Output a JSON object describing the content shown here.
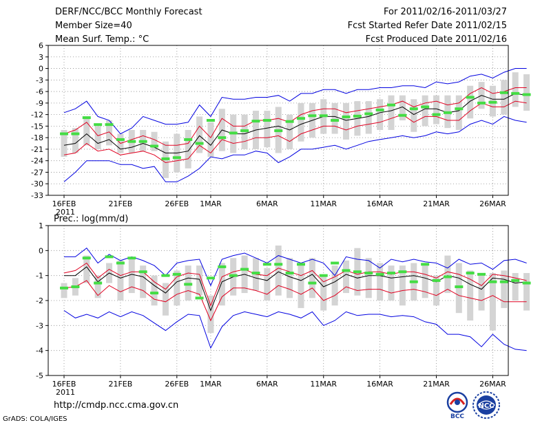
{
  "header": {
    "title": "DERF/NCC/BCC Monthly Forecast",
    "member_size": "Member Size=40",
    "variable": "Mean Surf. Temp.: °C",
    "forecast_period": "For 2011/02/16-2011/03/27",
    "refer_date": "Fcst Started Refer Date 2011/02/15",
    "produced_date": "Fcst Produced Date 2011/02/16"
  },
  "footer": {
    "url": "http://cmdp.ncc.cma.gov.cn",
    "grads": "GrADS: COLA/IGES",
    "logo_left_label": "BCC",
    "logo_right_label": "NCC"
  },
  "colors": {
    "outer_line": "#0000e0",
    "inner_line": "#e00020",
    "mean_line": "#000000",
    "box": "#d4d4d4",
    "observation": "#44dd44",
    "grid": "#888888"
  },
  "chart_data": [
    {
      "type": "line",
      "title": "Mean Surf. Temp.: °C",
      "ylabel": "",
      "ylim": [
        -33,
        6
      ],
      "yticks": [
        6,
        3,
        0,
        -3,
        -6,
        -9,
        -12,
        -15,
        -18,
        -21,
        -24,
        -27,
        -30,
        -33
      ],
      "x_tick_labels": [
        {
          "day": 1,
          "label": "16FEB"
        },
        {
          "day": 6,
          "label": "21FEB"
        },
        {
          "day": 11,
          "label": "26FEB"
        },
        {
          "day": 14,
          "label": "1MAR"
        },
        {
          "day": 19,
          "label": "6MAR"
        },
        {
          "day": 24,
          "label": "11MAR"
        },
        {
          "day": 29,
          "label": "16MAR"
        },
        {
          "day": 34,
          "label": "21MAR"
        },
        {
          "day": 39,
          "label": "26MAR"
        }
      ],
      "year_label": "2011",
      "days": 40,
      "series": [
        {
          "name": "upper",
          "values": [
            -11.5,
            -10.5,
            -8.5,
            -12.5,
            -13.5,
            -17,
            -15.5,
            -12.5,
            -13.5,
            -14.5,
            -14.5,
            -14,
            -9.5,
            -12.5,
            -7.5,
            -8,
            -8,
            -7.5,
            -7.5,
            -7,
            -8.5,
            -6.5,
            -6.5,
            -5.5,
            -5.5,
            -6.5,
            -5.5,
            -5.5,
            -5,
            -5,
            -4.5,
            -4.5,
            -5,
            -3.5,
            -4,
            -3.5,
            -2,
            -1.5,
            -2.5,
            -1,
            0,
            0
          ]
        },
        {
          "name": "upper_mid",
          "values": [
            -17,
            -16,
            -14,
            -17.5,
            -16.5,
            -19.5,
            -18.5,
            -17.5,
            -18.5,
            -20,
            -20,
            -19.5,
            -15,
            -18,
            -13,
            -15,
            -15,
            -13.5,
            -13.5,
            -13,
            -14,
            -12,
            -11,
            -10.5,
            -10.5,
            -11.5,
            -11,
            -10.5,
            -10,
            -9.5,
            -8.5,
            -10,
            -9,
            -8.5,
            -9.5,
            -9,
            -6.5,
            -5,
            -6.5,
            -6,
            -5,
            -5
          ]
        },
        {
          "name": "mean",
          "values": [
            -20,
            -19.5,
            -17,
            -19.5,
            -18.5,
            -21,
            -20.5,
            -19.5,
            -20.5,
            -22,
            -22,
            -21.5,
            -17.5,
            -20,
            -16,
            -17,
            -17,
            -16,
            -15.5,
            -15,
            -16,
            -14.5,
            -13.5,
            -12.5,
            -12.5,
            -13.5,
            -13,
            -12.5,
            -11.5,
            -11,
            -10,
            -12,
            -10.5,
            -10.5,
            -11.5,
            -11,
            -8.5,
            -7,
            -8,
            -8,
            -6.5,
            -7
          ]
        },
        {
          "name": "lower_mid",
          "values": [
            -22.5,
            -22,
            -19.5,
            -21.5,
            -21,
            -22.5,
            -22,
            -21.5,
            -22.5,
            -24.5,
            -24,
            -23.5,
            -20,
            -22,
            -18.5,
            -19.5,
            -19,
            -18,
            -18,
            -17.5,
            -19,
            -17,
            -16,
            -15,
            -15,
            -16,
            -15,
            -14.5,
            -14,
            -13,
            -12,
            -14,
            -12.5,
            -12.5,
            -13.5,
            -13.5,
            -11,
            -9,
            -10,
            -10,
            -8.5,
            -9
          ]
        },
        {
          "name": "lower",
          "values": [
            -29.5,
            -27,
            -24,
            -24,
            -24,
            -25,
            -25,
            -26,
            -25.5,
            -29.5,
            -29.5,
            -28,
            -26,
            -23,
            -23.5,
            -22.5,
            -22.5,
            -21.5,
            -22,
            -24.5,
            -23,
            -21,
            -21,
            -20.5,
            -20,
            -21,
            -20,
            -19,
            -18.5,
            -18,
            -17.5,
            -18,
            -17.5,
            -16.5,
            -17,
            -16.5,
            -14.5,
            -13.5,
            -14.5,
            -12.5,
            -13.5,
            -14
          ]
        }
      ],
      "boxes": [
        [
          -23,
          -16
        ],
        [
          -22,
          -15.5
        ],
        [
          -20,
          -13
        ],
        [
          -21,
          -15
        ],
        [
          -20,
          -13.5
        ],
        [
          -22,
          -17
        ],
        [
          -22,
          -16
        ],
        [
          -21.5,
          -16
        ],
        [
          -21.5,
          -16.5
        ],
        [
          -28.5,
          -19
        ],
        [
          -27,
          -17
        ],
        [
          -26,
          -16
        ],
        [
          -22,
          -12.5
        ],
        [
          -23,
          -14
        ],
        [
          -21.5,
          -10.5
        ],
        [
          -22,
          -12
        ],
        [
          -21,
          -12
        ],
        [
          -21,
          -11
        ],
        [
          -20.5,
          -11
        ],
        [
          -22,
          -10
        ],
        [
          -21,
          -12
        ],
        [
          -19,
          -9
        ],
        [
          -18,
          -9
        ],
        [
          -17,
          -8
        ],
        [
          -17,
          -9
        ],
        [
          -18.5,
          -9
        ],
        [
          -17.5,
          -8.5
        ],
        [
          -17,
          -8.5
        ],
        [
          -16,
          -8
        ],
        [
          -16,
          -7
        ],
        [
          -13.5,
          -7
        ],
        [
          -16.5,
          -8
        ],
        [
          -15,
          -7
        ],
        [
          -14.5,
          -7
        ],
        [
          -15.5,
          -7
        ],
        [
          -16,
          -7
        ],
        [
          -13,
          -4.5
        ],
        [
          -10.5,
          -3.5
        ],
        [
          -12.5,
          -4.5
        ],
        [
          -12,
          -3
        ],
        [
          -10,
          -1
        ],
        [
          -11,
          -1.5
        ]
      ],
      "observations": [
        [
          0,
          -17
        ],
        [
          1,
          -17
        ],
        [
          2,
          -12.8
        ],
        [
          3,
          -14.6
        ],
        [
          4,
          -14.6
        ],
        [
          5,
          -18.5
        ],
        [
          6,
          -19
        ],
        [
          7,
          -19
        ],
        [
          8,
          -20.2
        ],
        [
          9,
          -23.5
        ],
        [
          10,
          -23.2
        ],
        [
          11,
          -18.5
        ],
        [
          12,
          -19.5
        ],
        [
          13,
          -13.5
        ],
        [
          14,
          -18
        ],
        [
          15,
          -16.8
        ],
        [
          16,
          -16.2
        ],
        [
          17,
          -13.7
        ],
        [
          18,
          -13.5
        ],
        [
          19,
          -16.2
        ],
        [
          20,
          -13.8
        ],
        [
          21,
          -13
        ],
        [
          22,
          -12.3
        ],
        [
          23,
          -12.3
        ],
        [
          24,
          -13.5
        ],
        [
          25,
          -12.6
        ],
        [
          26,
          -12.4
        ],
        [
          27,
          -11.8
        ],
        [
          28,
          -10.8
        ],
        [
          29,
          -9.5
        ],
        [
          30,
          -12.2
        ],
        [
          31,
          -10.5
        ],
        [
          32,
          -10
        ],
        [
          33,
          -12
        ],
        [
          34,
          -11.5
        ],
        [
          35,
          -10.5
        ],
        [
          36,
          -7.5
        ],
        [
          37,
          -9
        ],
        [
          38,
          -8.8
        ],
        [
          39,
          -6.3
        ],
        [
          40,
          -6.5
        ],
        [
          41,
          -6.8
        ]
      ]
    },
    {
      "type": "line",
      "title": "Prec.: log(mm/d)",
      "ylabel": "",
      "ylim": [
        -5,
        1
      ],
      "yticks": [
        1,
        0,
        -1,
        -2,
        -3,
        -4,
        -5
      ],
      "x_tick_labels": [
        {
          "day": 1,
          "label": "16FEB"
        },
        {
          "day": 6,
          "label": "21FEB"
        },
        {
          "day": 11,
          "label": "26FEB"
        },
        {
          "day": 14,
          "label": "1MAR"
        },
        {
          "day": 19,
          "label": "6MAR"
        },
        {
          "day": 24,
          "label": "11MAR"
        },
        {
          "day": 29,
          "label": "16MAR"
        },
        {
          "day": 34,
          "label": "21MAR"
        },
        {
          "day": 39,
          "label": "26MAR"
        }
      ],
      "year_label": "2011",
      "days": 40,
      "series": [
        {
          "name": "upper",
          "values": [
            -0.25,
            -0.25,
            0.1,
            -0.5,
            -0.15,
            -0.4,
            -0.25,
            -0.4,
            -0.6,
            -1.0,
            -0.5,
            -0.4,
            -0.35,
            -1.4,
            -0.35,
            -0.2,
            -0.1,
            -0.3,
            -0.5,
            -0.2,
            -0.35,
            -0.5,
            -0.35,
            -0.5,
            -1.0,
            -0.25,
            -0.35,
            -0.4,
            -0.7,
            -0.35,
            -0.45,
            -0.35,
            -0.45,
            -0.5,
            -0.7,
            -0.35,
            -0.55,
            -0.5,
            -0.75,
            -0.4,
            -0.35,
            -0.5
          ]
        },
        {
          "name": "upper_mid",
          "values": [
            -0.9,
            -0.8,
            -0.5,
            -1.1,
            -0.75,
            -1.0,
            -0.85,
            -0.85,
            -1.25,
            -1.55,
            -1.05,
            -0.9,
            -0.95,
            -2.2,
            -1.05,
            -0.85,
            -0.75,
            -0.95,
            -1.0,
            -0.7,
            -0.85,
            -1.0,
            -0.8,
            -1.25,
            -1.05,
            -0.8,
            -0.95,
            -0.85,
            -0.85,
            -0.95,
            -0.85,
            -0.85,
            -0.95,
            -1.1,
            -0.85,
            -0.95,
            -1.15,
            -1.4,
            -0.95,
            -1.0,
            -1.1,
            -1.2
          ]
        },
        {
          "name": "mean",
          "values": [
            -1.0,
            -1.0,
            -0.65,
            -1.25,
            -0.9,
            -1.1,
            -0.95,
            -1.05,
            -1.4,
            -1.7,
            -1.25,
            -1.1,
            -1.15,
            -2.4,
            -1.25,
            -1.05,
            -0.95,
            -1.1,
            -1.2,
            -0.85,
            -1.05,
            -1.2,
            -0.95,
            -1.45,
            -1.25,
            -0.95,
            -1.1,
            -1.0,
            -1.0,
            -1.1,
            -1.05,
            -1.0,
            -1.1,
            -1.25,
            -1.0,
            -1.1,
            -1.35,
            -1.55,
            -1.1,
            -1.15,
            -1.3,
            -1.25
          ]
        },
        {
          "name": "lower_mid",
          "values": [
            -1.5,
            -1.45,
            -1.2,
            -1.8,
            -1.4,
            -1.65,
            -1.45,
            -1.6,
            -1.95,
            -2.05,
            -1.75,
            -1.6,
            -1.75,
            -2.8,
            -1.85,
            -1.5,
            -1.5,
            -1.6,
            -1.75,
            -1.4,
            -1.55,
            -1.75,
            -1.5,
            -2.0,
            -1.8,
            -1.45,
            -1.6,
            -1.55,
            -1.55,
            -1.7,
            -1.6,
            -1.55,
            -1.65,
            -1.8,
            -1.55,
            -1.8,
            -1.9,
            -2.0,
            -1.8,
            -2.05,
            -2.05,
            -2.05
          ]
        },
        {
          "name": "lower",
          "values": [
            -2.4,
            -2.7,
            -2.55,
            -2.7,
            -2.45,
            -2.65,
            -2.45,
            -2.6,
            -2.9,
            -3.2,
            -2.85,
            -2.55,
            -2.6,
            -3.9,
            -3.05,
            -2.6,
            -2.45,
            -2.55,
            -2.65,
            -2.45,
            -2.55,
            -2.7,
            -2.45,
            -3.0,
            -2.8,
            -2.45,
            -2.6,
            -2.55,
            -2.55,
            -2.65,
            -2.6,
            -2.65,
            -2.85,
            -2.95,
            -3.35,
            -3.35,
            -3.45,
            -3.85,
            -3.35,
            -3.75,
            -3.95,
            -4.0
          ]
        },
        {
          "name": "lower_tail",
          "values": []
        }
      ],
      "boxes": [
        [
          -1.9,
          -1.3
        ],
        [
          -1.8,
          -1.1
        ],
        [
          -1.3,
          -0.2
        ],
        [
          -1.9,
          -1.0
        ],
        [
          -1.3,
          -0.5
        ],
        [
          -2.0,
          -0.4
        ],
        [
          -1.7,
          -0.3
        ],
        [
          -1.9,
          -0.6
        ],
        [
          -2.2,
          -1.0
        ],
        [
          -2.6,
          -1.3
        ],
        [
          -2.2,
          -0.8
        ],
        [
          -2.0,
          -0.6
        ],
        [
          -1.8,
          -0.6
        ],
        [
          -3.3,
          -1.8
        ],
        [
          -2.2,
          -0.5
        ],
        [
          -1.8,
          -0.3
        ],
        [
          -1.7,
          -0.2
        ],
        [
          -1.6,
          -0.3
        ],
        [
          -2.0,
          -0.7
        ],
        [
          -1.8,
          0.2
        ],
        [
          -1.9,
          -0.3
        ],
        [
          -2.3,
          -0.6
        ],
        [
          -1.9,
          -0.3
        ],
        [
          -2.4,
          -1.0
        ],
        [
          -2.2,
          -0.6
        ],
        [
          -1.7,
          -0.4
        ],
        [
          -1.8,
          0.1
        ],
        [
          -1.9,
          -0.3
        ],
        [
          -2.0,
          -0.5
        ],
        [
          -2.0,
          -0.6
        ],
        [
          -2.2,
          -0.6
        ],
        [
          -2.0,
          -0.5
        ],
        [
          -1.9,
          -0.6
        ],
        [
          -2.2,
          -1.0
        ],
        [
          -1.7,
          -0.2
        ],
        [
          -2.5,
          -0.5
        ],
        [
          -2.8,
          -0.8
        ],
        [
          -2.4,
          -0.9
        ],
        [
          -3.2,
          -0.9
        ],
        [
          -2.3,
          -0.8
        ],
        [
          -2.0,
          -0.9
        ],
        [
          -2.4,
          -0.9
        ]
      ],
      "observations": [
        [
          0,
          -1.5
        ],
        [
          1,
          -1.45
        ],
        [
          2,
          -0.3
        ],
        [
          3,
          -1.3
        ],
        [
          4,
          -0.25
        ],
        [
          5,
          -0.5
        ],
        [
          6,
          -0.3
        ],
        [
          7,
          -0.85
        ],
        [
          8,
          -1.7
        ],
        [
          9,
          -1.0
        ],
        [
          10,
          -0.95
        ],
        [
          11,
          -1.35
        ],
        [
          12,
          -1.9
        ],
        [
          13,
          -1.1
        ],
        [
          14,
          -0.65
        ],
        [
          15,
          -1.0
        ],
        [
          16,
          -0.75
        ],
        [
          17,
          -0.9
        ],
        [
          18,
          -0.55
        ],
        [
          19,
          -0.55
        ],
        [
          20,
          -0.9
        ],
        [
          21,
          -0.55
        ],
        [
          22,
          -1.3
        ],
        [
          23,
          -1.0
        ],
        [
          24,
          -0.5
        ],
        [
          25,
          -0.8
        ],
        [
          26,
          -0.85
        ],
        [
          27,
          -0.9
        ],
        [
          28,
          -0.95
        ],
        [
          29,
          -0.9
        ],
        [
          30,
          -0.85
        ],
        [
          31,
          -1.25
        ],
        [
          32,
          -0.55
        ],
        [
          33,
          -1.2
        ],
        [
          34,
          -1.05
        ],
        [
          35,
          -1.45
        ],
        [
          36,
          -0.9
        ],
        [
          37,
          -0.95
        ],
        [
          38,
          -1.25
        ],
        [
          39,
          -1.25
        ],
        [
          40,
          -1.2
        ],
        [
          41,
          -1.3
        ]
      ]
    }
  ]
}
